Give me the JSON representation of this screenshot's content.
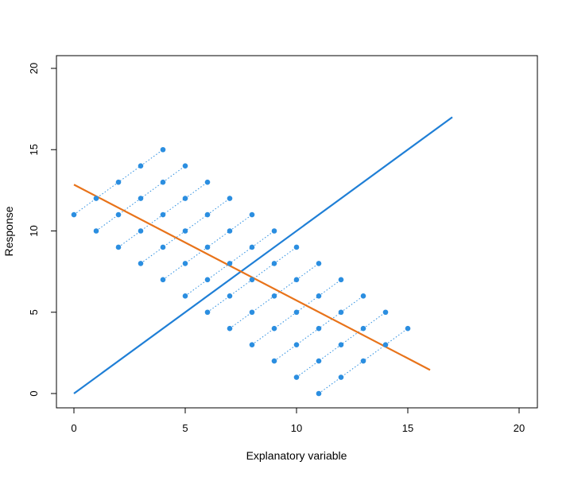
{
  "chart_data": {
    "type": "scatter",
    "title": "",
    "xlabel": "Explanatory variable",
    "ylabel": "Response",
    "xlim": [
      0,
      20
    ],
    "ylim": [
      0,
      20
    ],
    "xticks": [
      0,
      5,
      10,
      15,
      20
    ],
    "yticks": [
      0,
      5,
      10,
      15,
      20
    ],
    "xtick_labels": [
      "0",
      "5",
      "10",
      "15",
      "20"
    ],
    "ytick_labels": [
      "0",
      "5",
      "10",
      "15",
      "20"
    ],
    "grid": false,
    "legend": "none",
    "colors": {
      "points": "#2b8ee0",
      "point_trails": "#2b8ee0",
      "blue_line": "#1f7fd6",
      "orange_line": "#e8731a",
      "axes": "#000000"
    },
    "point_groups": [
      {
        "x": [
          0,
          1,
          2,
          3,
          4
        ],
        "y": [
          11,
          12,
          13,
          14,
          15
        ]
      },
      {
        "x": [
          1,
          2,
          3,
          4,
          5
        ],
        "y": [
          10,
          11,
          12,
          13,
          14
        ]
      },
      {
        "x": [
          2,
          3,
          4,
          5,
          6
        ],
        "y": [
          9,
          10,
          11,
          12,
          13
        ]
      },
      {
        "x": [
          3,
          4,
          5,
          6,
          7
        ],
        "y": [
          8,
          9,
          10,
          11,
          12
        ]
      },
      {
        "x": [
          4,
          5,
          6,
          7,
          8
        ],
        "y": [
          7,
          8,
          9,
          10,
          11
        ]
      },
      {
        "x": [
          5,
          6,
          7,
          8,
          9
        ],
        "y": [
          6,
          7,
          8,
          9,
          10
        ]
      },
      {
        "x": [
          6,
          7,
          8,
          9,
          10
        ],
        "y": [
          5,
          6,
          7,
          8,
          9
        ]
      },
      {
        "x": [
          7,
          8,
          9,
          10,
          11
        ],
        "y": [
          4,
          5,
          6,
          7,
          8
        ]
      },
      {
        "x": [
          8,
          9,
          10,
          11,
          12
        ],
        "y": [
          3,
          4,
          5,
          6,
          7
        ]
      },
      {
        "x": [
          9,
          10,
          11,
          12,
          13
        ],
        "y": [
          2,
          3,
          4,
          5,
          6
        ]
      },
      {
        "x": [
          10,
          11,
          12,
          13,
          14
        ],
        "y": [
          1,
          2,
          3,
          4,
          5
        ]
      },
      {
        "x": [
          11,
          12,
          13,
          14,
          15
        ],
        "y": [
          0,
          1,
          2,
          3,
          4
        ]
      }
    ],
    "lines": [
      {
        "color": "blue",
        "x": [
          0,
          17
        ],
        "y": [
          0,
          17
        ]
      },
      {
        "color": "orange",
        "x": [
          0,
          16
        ],
        "y": [
          12.85,
          1.45
        ]
      }
    ]
  }
}
